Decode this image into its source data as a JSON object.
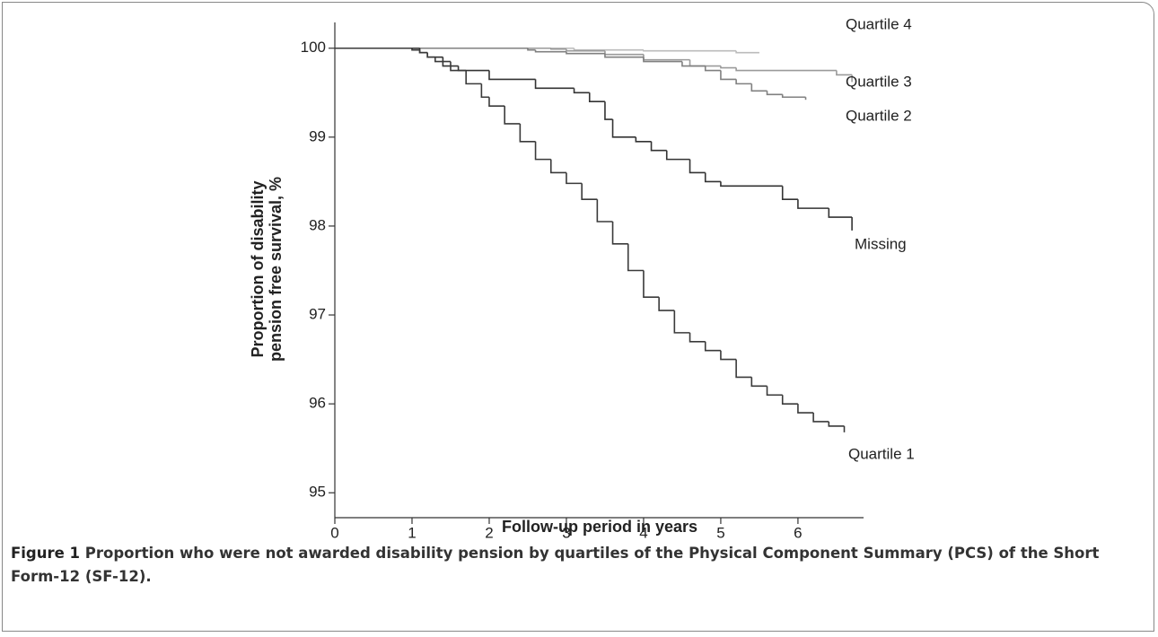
{
  "chart_data": {
    "type": "step",
    "y_label": [
      "Proportion of disability",
      "pension free survival, %"
    ],
    "x_label": "Follow-up period in years",
    "xlim": [
      0,
      6.85
    ],
    "xticks": [
      0,
      1,
      2,
      3,
      4,
      5,
      6
    ],
    "ylim": [
      94.72,
      100.29
    ],
    "yticks": [
      95,
      96,
      97,
      98,
      99,
      100
    ],
    "series": [
      {
        "name": "Quartile 4",
        "color": "#bbbbbb",
        "x": [
          0,
          3.1,
          4.0,
          5.2,
          5.5
        ],
        "values": [
          100,
          99.98,
          99.97,
          99.95,
          99.95
        ]
      },
      {
        "name": "Quartile 3",
        "color": "#9a9a9a",
        "x": [
          0,
          2.8,
          3.0,
          3.5,
          4.0,
          4.6,
          5.0,
          5.2,
          6.5,
          6.7
        ],
        "values": [
          100,
          99.99,
          99.97,
          99.93,
          99.87,
          99.8,
          99.78,
          99.75,
          99.7,
          99.62
        ]
      },
      {
        "name": "Quartile 2",
        "color": "#808080",
        "x": [
          0,
          2.5,
          2.6,
          3.0,
          3.5,
          4.0,
          4.5,
          4.8,
          5.0,
          5.2,
          5.4,
          5.6,
          5.8,
          6.1
        ],
        "values": [
          100,
          99.98,
          99.96,
          99.94,
          99.9,
          99.85,
          99.8,
          99.75,
          99.65,
          99.6,
          99.52,
          99.48,
          99.45,
          99.42
        ]
      },
      {
        "name": "Missing",
        "color": "#333333",
        "x": [
          0,
          1.1,
          1.2,
          1.4,
          1.6,
          2.0,
          2.6,
          3.1,
          3.3,
          3.5,
          3.6,
          3.9,
          4.1,
          4.3,
          4.6,
          4.8,
          5.0,
          5.8,
          6.0,
          6.4,
          6.7
        ],
        "values": [
          100,
          99.95,
          99.9,
          99.8,
          99.75,
          99.65,
          99.55,
          99.5,
          99.4,
          99.2,
          99.0,
          98.95,
          98.85,
          98.75,
          98.6,
          98.5,
          98.45,
          98.3,
          98.2,
          98.1,
          97.95
        ]
      },
      {
        "name": "Quartile 1",
        "color": "#3a3a3a",
        "x": [
          0,
          1.0,
          1.1,
          1.2,
          1.3,
          1.5,
          1.7,
          1.9,
          2.0,
          2.2,
          2.4,
          2.6,
          2.8,
          3.0,
          3.2,
          3.4,
          3.6,
          3.8,
          4.0,
          4.2,
          4.4,
          4.6,
          4.8,
          5.0,
          5.2,
          5.4,
          5.6,
          5.8,
          6.0,
          6.2,
          6.4,
          6.6
        ],
        "values": [
          100,
          99.98,
          99.95,
          99.9,
          99.85,
          99.75,
          99.6,
          99.45,
          99.35,
          99.15,
          98.95,
          98.75,
          98.6,
          98.48,
          98.3,
          98.05,
          97.8,
          97.5,
          97.2,
          97.05,
          96.8,
          96.7,
          96.6,
          96.5,
          96.3,
          96.2,
          96.1,
          96.0,
          95.9,
          95.8,
          95.75,
          95.68
        ]
      }
    ]
  },
  "caption": {
    "label": "Figure 1",
    "text": "Proportion who were not awarded disability pension by quartiles of the Physical Component Summary (PCS) of the Short Form-12 (SF-12)."
  }
}
